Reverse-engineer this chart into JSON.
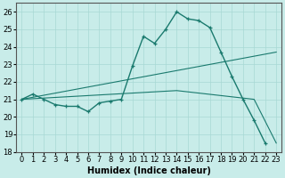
{
  "xlabel": "Humidex (Indice chaleur)",
  "ylabel": "",
  "bg_color": "#c8ece9",
  "grid_color": "#a8d8d4",
  "line_color": "#1a7a6e",
  "xlim": [
    -0.5,
    23.5
  ],
  "ylim": [
    18,
    26.5
  ],
  "yticks": [
    18,
    19,
    20,
    21,
    22,
    23,
    24,
    25,
    26
  ],
  "xticks": [
    0,
    1,
    2,
    3,
    4,
    5,
    6,
    7,
    8,
    9,
    10,
    11,
    12,
    13,
    14,
    15,
    16,
    17,
    18,
    19,
    20,
    21,
    22,
    23
  ],
  "series1_x": [
    0,
    1,
    2,
    3,
    4,
    5,
    6,
    7,
    8,
    9,
    10,
    11,
    12,
    13,
    14,
    15,
    16,
    17,
    18,
    19,
    20,
    21,
    22
  ],
  "series1_y": [
    21.0,
    21.3,
    21.0,
    20.7,
    20.6,
    20.6,
    20.3,
    20.8,
    20.9,
    21.0,
    22.9,
    24.6,
    24.2,
    25.0,
    26.0,
    25.6,
    25.5,
    25.1,
    23.7,
    22.3,
    21.0,
    19.8,
    18.5
  ],
  "series2_x": [
    0,
    23
  ],
  "series2_y": [
    21.0,
    23.7
  ],
  "series3_x": [
    0,
    14,
    21,
    23
  ],
  "series3_y": [
    21.0,
    21.5,
    21.0,
    18.5
  ],
  "font_size": 6.0,
  "xlabel_fontsize": 7.0
}
